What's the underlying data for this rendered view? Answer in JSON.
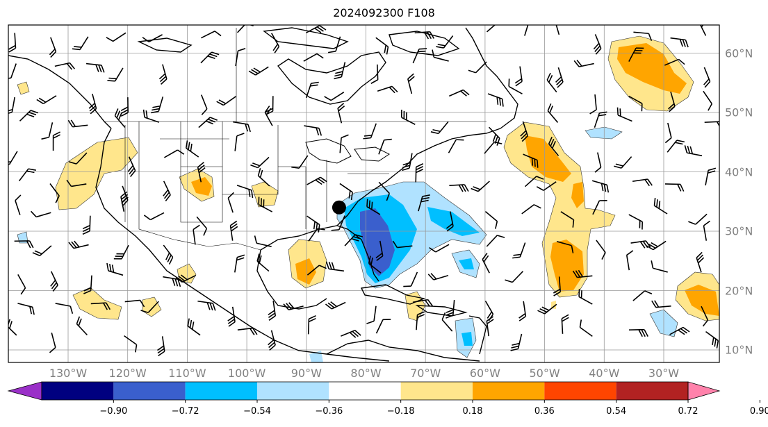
{
  "title": "2024092300 F108",
  "lon_labels": [
    "130°W",
    "120°W",
    "110°W",
    "100°W",
    "90°W",
    "80°W",
    "70°W",
    "60°W",
    "50°W",
    "40°W",
    "30°W"
  ],
  "lat_labels": [
    "60°N",
    "50°N",
    "40°N",
    "30°N",
    "20°N",
    "10°N"
  ],
  "colorbar": {
    "ticks": [
      "−0.90",
      "−0.72",
      "−0.54",
      "−0.36",
      "−0.18",
      "0.18",
      "0.36",
      "0.54",
      "0.72",
      "0.90"
    ],
    "colors": [
      "#9a30c8",
      "#000080",
      "#3a5fcd",
      "#00bfff",
      "#b0e2ff",
      "#ffffff",
      "#ffe68c",
      "#ffa500",
      "#ff4500",
      "#b22222",
      "#ff82ab"
    ]
  },
  "marker": {
    "label": "storm-center",
    "lon": -84.5,
    "lat": 34.0
  },
  "map_extent": {
    "west": -140,
    "east": -20,
    "south": 7,
    "north": 65
  }
}
